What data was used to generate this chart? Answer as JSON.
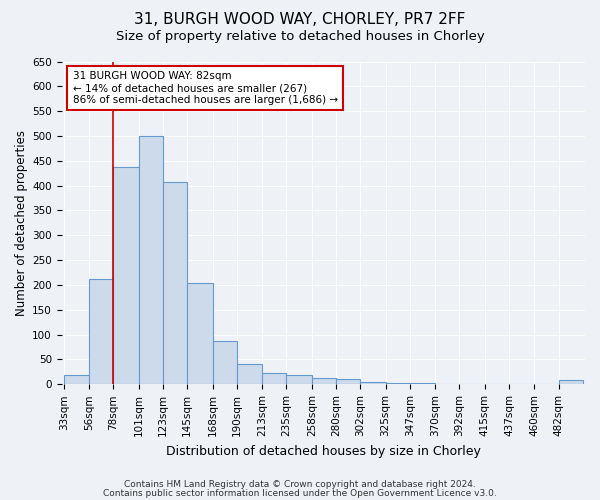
{
  "title1": "31, BURGH WOOD WAY, CHORLEY, PR7 2FF",
  "title2": "Size of property relative to detached houses in Chorley",
  "xlabel": "Distribution of detached houses by size in Chorley",
  "ylabel": "Number of detached properties",
  "bin_labels": [
    "33sqm",
    "56sqm",
    "78sqm",
    "101sqm",
    "123sqm",
    "145sqm",
    "168sqm",
    "190sqm",
    "213sqm",
    "235sqm",
    "258sqm",
    "280sqm",
    "302sqm",
    "325sqm",
    "347sqm",
    "370sqm",
    "392sqm",
    "415sqm",
    "437sqm",
    "460sqm",
    "482sqm"
  ],
  "bar_heights": [
    18,
    212,
    438,
    500,
    407,
    205,
    87,
    40,
    23,
    18,
    12,
    10,
    5,
    3,
    2,
    0,
    0,
    0,
    0,
    0,
    8
  ],
  "bar_color": "#ccdaeb",
  "bar_edge_color": "#6699cc",
  "vline_x_idx": 2,
  "vline_color": "#cc0000",
  "annotation_text": "31 BURGH WOOD WAY: 82sqm\n← 14% of detached houses are smaller (267)\n86% of semi-detached houses are larger (1,686) →",
  "annotation_box_color": "#ffffff",
  "annotation_box_edgecolor": "#cc0000",
  "ylim": [
    0,
    650
  ],
  "yticks": [
    0,
    50,
    100,
    150,
    200,
    250,
    300,
    350,
    400,
    450,
    500,
    550,
    600,
    650
  ],
  "footer1": "Contains HM Land Registry data © Crown copyright and database right 2024.",
  "footer2": "Contains public sector information licensed under the Open Government Licence v3.0.",
  "bg_color": "#eef2f7",
  "grid_color": "#ffffff",
  "title1_fontsize": 11,
  "title2_fontsize": 9.5,
  "xlabel_fontsize": 9,
  "ylabel_fontsize": 8.5,
  "tick_fontsize": 7.5,
  "footer_fontsize": 6.5,
  "annot_fontsize": 7.5
}
